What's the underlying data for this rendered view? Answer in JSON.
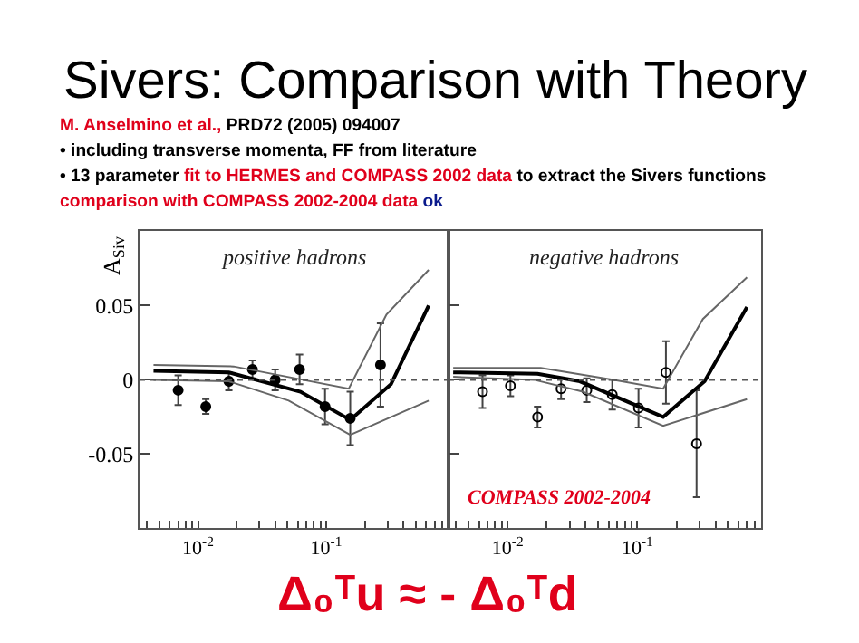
{
  "chart_data": [
    {
      "type": "scatter",
      "title": "positive hadrons",
      "ylabel": "A$_{Siv}$",
      "annotations": [
        "Sivers: Comparison with Theory",
        "M. Anselmino et al.,",
        "PRD72 (2005) 094007",
        "• including transverse momenta, FF from literature",
        "• 13 parameter",
        "fit to HERMES and COMPASS 2002 data",
        "to extract the Sivers functions",
        "comparison with COMPASS 2002-2004 data",
        "ok",
        "Δ₀ᵀu ≈ - Δ₀ᵀd"
      ],
      "log": "x",
      "xlim": [
        0.0035,
        0.9
      ],
      "ylim": [
        -0.1,
        0.1
      ],
      "xticks": [
        {
          "value": 0.004,
          "label": null
        },
        {
          "value": 0.005,
          "label": null
        },
        {
          "value": 0.006,
          "label": null
        },
        {
          "value": 0.007,
          "label": null
        },
        {
          "value": 0.008,
          "label": null
        },
        {
          "value": 0.009,
          "label": null
        },
        {
          "value": 0.01,
          "label": "10$^{-2}$"
        },
        {
          "value": 0.02,
          "label": null
        },
        {
          "value": 0.03,
          "label": null
        },
        {
          "value": 0.04,
          "label": null
        },
        {
          "value": 0.05,
          "label": null
        },
        {
          "value": 0.06,
          "label": null
        },
        {
          "value": 0.07,
          "label": null
        },
        {
          "value": 0.08,
          "label": null
        },
        {
          "value": 0.09,
          "label": null
        },
        {
          "value": 0.1,
          "label": "10$^{-1}$"
        },
        {
          "value": 0.2,
          "label": null
        },
        {
          "value": 0.3,
          "label": null
        },
        {
          "value": 0.4,
          "label": null
        },
        {
          "value": 0.5,
          "label": null
        },
        {
          "value": 0.6,
          "label": null
        },
        {
          "value": 0.7,
          "label": null
        },
        {
          "value": 0.8,
          "label": null
        },
        {
          "value": 0.9,
          "label": null
        }
      ],
      "yticks": [
        -0.05,
        0,
        0.05
      ],
      "ref_lines": [
        {
          "axis": "y",
          "value": 0,
          "line_style": "dotted"
        }
      ],
      "series": [
        {
          "color": "#000000",
          "marker": "circle",
          "x": [
            0.007,
            0.0115,
            0.0174,
            0.0266,
            0.04,
            0.062,
            0.098,
            0.154,
            0.265
          ],
          "values": [
            -0.007,
            -0.018,
            -0.001,
            0.007,
            0.0,
            0.007,
            -0.018,
            -0.026,
            0.01
          ],
          "errors": [
            0.01,
            0.005,
            0.006,
            0.006,
            0.007,
            0.01,
            0.012,
            0.018,
            0.028
          ]
        },
        {
          "type": "line",
          "color": "#666666",
          "x": [
            0.0045,
            0.0174,
            0.051,
            0.154,
            0.63
          ],
          "values": [
            0.0,
            -0.001,
            -0.014,
            -0.037,
            -0.014
          ]
        },
        {
          "type": "line",
          "color": "#000000",
          "x": [
            0.0045,
            0.0174,
            0.063,
            0.154,
            0.32,
            0.63
          ],
          "values": [
            0.006,
            0.005,
            -0.008,
            -0.027,
            -0.003,
            0.05
          ]
        },
        {
          "type": "line",
          "color": "#666666",
          "x": [
            0.0045,
            0.019,
            0.15,
            0.295,
            0.63
          ],
          "values": [
            0.01,
            0.009,
            -0.006,
            0.044,
            0.074
          ]
        }
      ]
    },
    {
      "type": "scatter",
      "title": "negative hadrons",
      "annotations": [
        "COMPASS 2002-2004"
      ],
      "log": "x",
      "xlim": [
        0.0035,
        0.9
      ],
      "ylim": [
        -0.1,
        0.1
      ],
      "tick_labels": "x",
      "xticks": [
        {
          "value": 0.004,
          "label": null
        },
        {
          "value": 0.005,
          "label": null
        },
        {
          "value": 0.006,
          "label": null
        },
        {
          "value": 0.007,
          "label": null
        },
        {
          "value": 0.008,
          "label": null
        },
        {
          "value": 0.009,
          "label": null
        },
        {
          "value": 0.01,
          "label": "10$^{-2}$"
        },
        {
          "value": 0.02,
          "label": null
        },
        {
          "value": 0.03,
          "label": null
        },
        {
          "value": 0.04,
          "label": null
        },
        {
          "value": 0.05,
          "label": null
        },
        {
          "value": 0.06,
          "label": null
        },
        {
          "value": 0.07,
          "label": null
        },
        {
          "value": 0.08,
          "label": null
        },
        {
          "value": 0.09,
          "label": null
        },
        {
          "value": 0.1,
          "label": "10$^{-1}$"
        },
        {
          "value": 0.2,
          "label": null
        },
        {
          "value": 0.3,
          "label": null
        },
        {
          "value": 0.4,
          "label": null
        },
        {
          "value": 0.5,
          "label": null
        },
        {
          "value": 0.6,
          "label": null
        },
        {
          "value": 0.7,
          "label": null
        },
        {
          "value": 0.8,
          "label": null
        },
        {
          "value": 0.9,
          "label": null
        }
      ],
      "yticks": [
        -0.05,
        0,
        0.05
      ],
      "ref_lines": [
        {
          "axis": "y",
          "value": 0,
          "line_style": "dotted"
        }
      ],
      "series": [
        {
          "color": "#000000",
          "marker": "circle",
          "x": [
            0.0064,
            0.0105,
            0.017,
            0.0258,
            0.0407,
            0.064,
            0.102,
            0.166,
            0.286
          ],
          "values": [
            -0.008,
            -0.004,
            -0.025,
            -0.006,
            -0.007,
            -0.01,
            -0.019,
            0.005,
            -0.043
          ],
          "errors": [
            0.011,
            0.007,
            0.007,
            0.007,
            0.008,
            0.01,
            0.013,
            0.021,
            0.036
          ]
        },
        {
          "type": "line",
          "color": "#666666",
          "x": [
            0.0038,
            0.016,
            0.038,
            0.158,
            0.7
          ],
          "values": [
            0.002,
            0.0,
            -0.008,
            -0.031,
            -0.013
          ]
        },
        {
          "type": "line",
          "color": "#000000",
          "x": [
            0.0038,
            0.017,
            0.036,
            0.158,
            0.33,
            0.7
          ],
          "values": [
            0.005,
            0.004,
            -0.001,
            -0.025,
            -0.001,
            0.049
          ]
        },
        {
          "type": "line",
          "color": "#666666",
          "x": [
            0.0038,
            0.018,
            0.066,
            0.158,
            0.32,
            0.7
          ],
          "values": [
            0.008,
            0.008,
            0.0,
            -0.006,
            0.041,
            0.069
          ]
        }
      ]
    }
  ]
}
